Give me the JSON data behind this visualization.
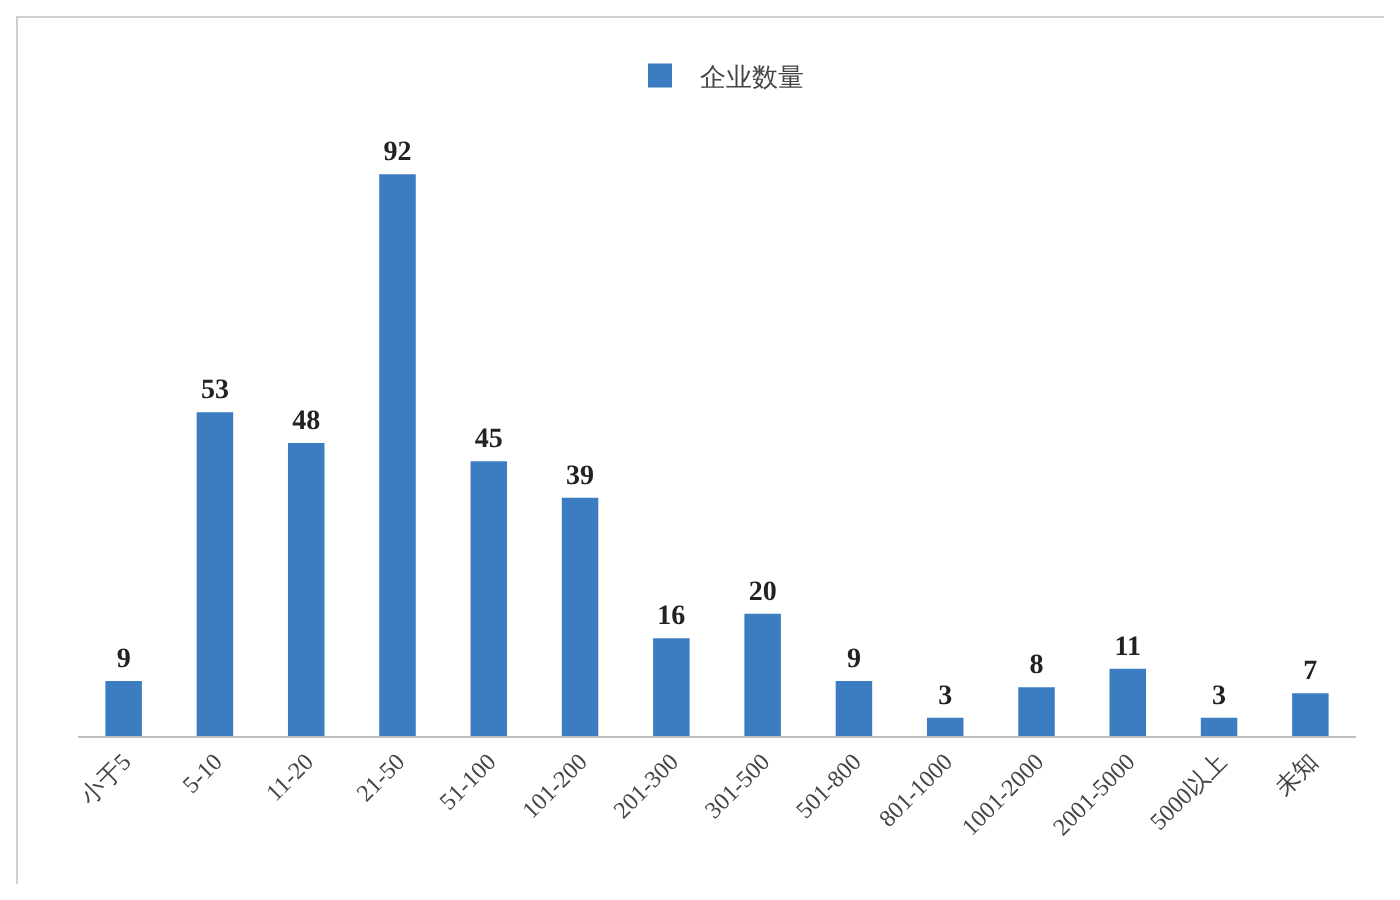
{
  "chart_data": {
    "type": "bar",
    "categories": [
      "小于5",
      "5-10",
      "11-20",
      "21-50",
      "51-100",
      "101-200",
      "201-300",
      "301-500",
      "501-800",
      "801-1000",
      "1001-2000",
      "2001-5000",
      "5000以上",
      "未知"
    ],
    "series": [
      {
        "name": "企业数量",
        "color": "#3b7dc0",
        "values": [
          9,
          53,
          48,
          92,
          45,
          39,
          16,
          20,
          9,
          3,
          8,
          11,
          3,
          7
        ]
      }
    ],
    "data_labels": true,
    "legend": "top",
    "grid": false
  }
}
